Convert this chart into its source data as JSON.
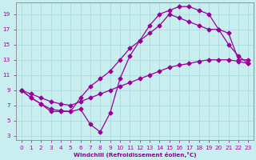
{
  "xlabel": "Windchill (Refroidissement éolien,°C)",
  "bg_color": "#c8eef0",
  "grid_color": "#b0dde0",
  "line_color": "#990099",
  "markersize": 2.5,
  "linewidth": 0.9,
  "xlim": [
    -0.5,
    23.5
  ],
  "ylim": [
    2.5,
    20.5
  ],
  "xticks": [
    0,
    1,
    2,
    3,
    4,
    5,
    6,
    7,
    8,
    9,
    10,
    11,
    12,
    13,
    14,
    15,
    16,
    17,
    18,
    19,
    20,
    21,
    22,
    23
  ],
  "yticks": [
    3,
    5,
    7,
    9,
    11,
    13,
    15,
    17,
    19
  ],
  "line1_x": [
    0,
    1,
    2,
    3,
    4,
    5,
    6,
    7,
    8,
    9,
    10,
    11,
    12,
    13,
    14,
    15,
    16,
    17,
    18,
    19,
    20,
    21,
    22,
    23
  ],
  "line1_y": [
    9.0,
    8.0,
    7.2,
    6.2,
    6.2,
    6.2,
    6.5,
    4.5,
    3.5,
    6.0,
    10.5,
    13.5,
    15.5,
    17.5,
    19.0,
    19.5,
    20.0,
    20.0,
    19.5,
    19.0,
    17.0,
    15.0,
    13.5,
    12.5
  ],
  "line2_x": [
    0,
    1,
    2,
    3,
    4,
    5,
    6,
    7,
    8,
    9,
    10,
    11,
    12,
    13,
    14,
    15,
    16,
    17,
    18,
    19,
    20,
    21,
    22,
    23
  ],
  "line2_y": [
    9.0,
    8.5,
    8.0,
    7.5,
    7.2,
    7.0,
    7.5,
    8.0,
    8.5,
    9.0,
    9.5,
    10.0,
    10.5,
    11.0,
    11.5,
    12.0,
    12.3,
    12.5,
    12.8,
    13.0,
    13.0,
    13.0,
    12.8,
    12.5
  ],
  "line3_x": [
    0,
    1,
    2,
    3,
    4,
    5,
    6,
    7,
    8,
    9,
    10,
    11,
    12,
    13,
    14,
    15,
    16,
    17,
    18,
    19,
    20,
    21,
    22,
    23
  ],
  "line3_y": [
    9.0,
    8.0,
    7.2,
    6.5,
    6.3,
    6.2,
    8.0,
    9.5,
    10.5,
    11.5,
    13.0,
    14.5,
    15.5,
    16.5,
    17.5,
    19.0,
    18.5,
    18.0,
    17.5,
    17.0,
    17.0,
    16.5,
    13.0,
    13.0
  ]
}
